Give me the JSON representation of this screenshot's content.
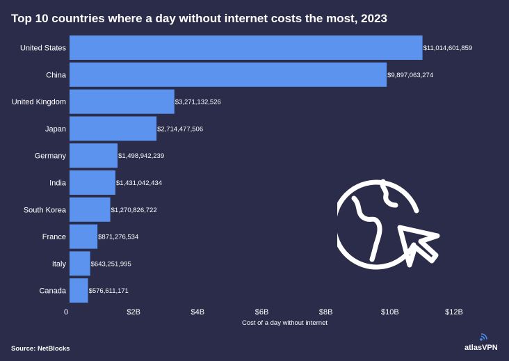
{
  "chart_data": {
    "type": "bar",
    "orientation": "horizontal",
    "title": "Top 10 countries where a day without internet costs the most, 2023",
    "xlabel": "Cost of a day without internet",
    "ylabel": "",
    "xlim": [
      0,
      12000000000
    ],
    "xticks": [
      0,
      2000000000,
      4000000000,
      6000000000,
      8000000000,
      10000000000,
      12000000000
    ],
    "xtick_labels": [
      "0",
      "$2B",
      "$4B",
      "$6B",
      "$8B",
      "$10B",
      "$12B"
    ],
    "categories": [
      "United States",
      "China",
      "United Kingdom",
      "Japan",
      "Germany",
      "India",
      "South Korea",
      "France",
      "Italy",
      "Canada"
    ],
    "values": [
      11014601859,
      9897063274,
      3271132526,
      2714477506,
      1498942239,
      1431042434,
      1270826722,
      871276534,
      643251995,
      576611171
    ],
    "value_labels": [
      "$11,014,601,859",
      "$9,897,063,274",
      "$3,271,132,526",
      "$2,714,477,506",
      "$1,498,942,239",
      "$1,431,042,434",
      "$1,270,826,722",
      "$871,276,534",
      "$643,251,995",
      "$576,611,171"
    ],
    "bar_color": "#5b93ee",
    "background": "#2b2c4a",
    "grid": false,
    "legend": "none"
  },
  "footer": {
    "source": "Source: NetBlocks",
    "brand": "atlasVPN"
  },
  "decor": {
    "icon": "globe-cursor-icon",
    "brand_icon": "atlasvpn-signal-icon"
  }
}
